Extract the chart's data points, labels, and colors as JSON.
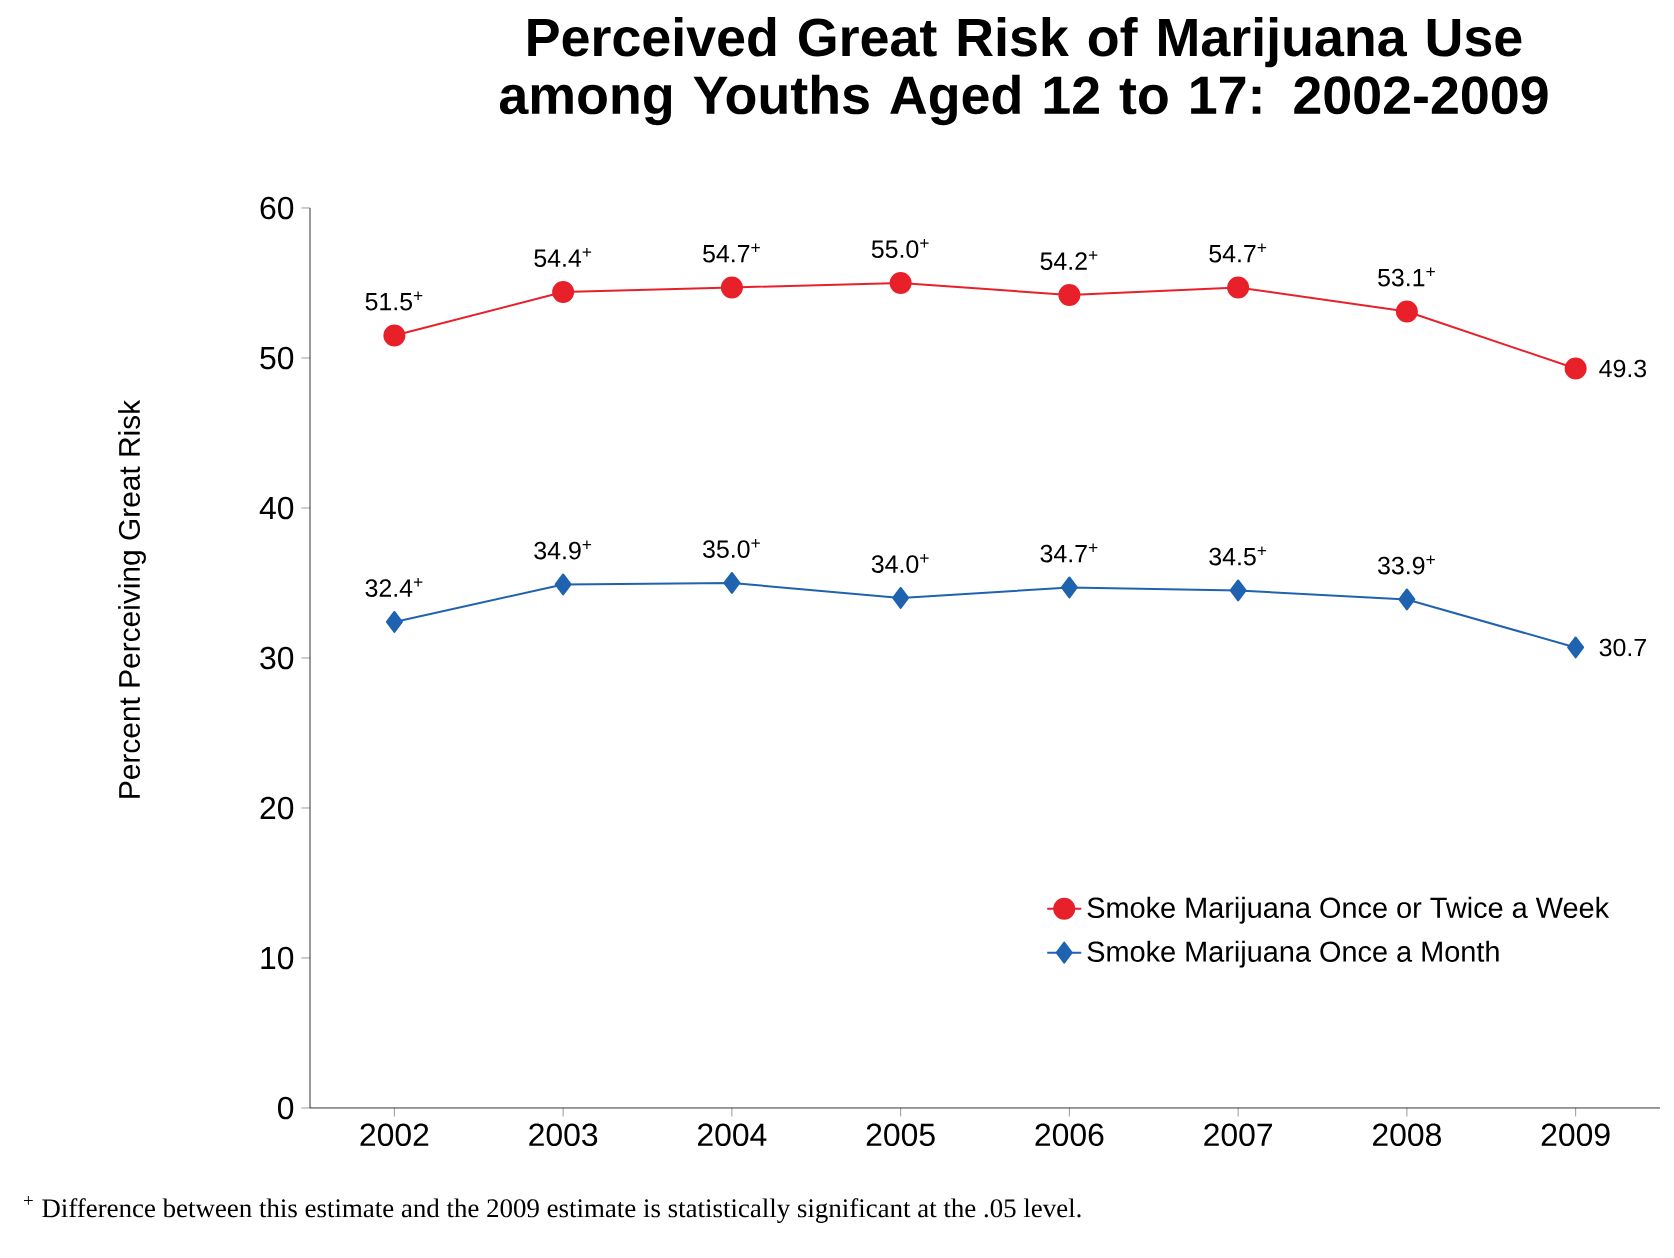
{
  "chart_data": {
    "type": "line",
    "title": "Perceived Great Risk of Marijuana Use among Youths Aged 12 to 17: 2002-2009",
    "ylabel": "Percent Perceiving Great Risk",
    "categories": [
      "2002",
      "2003",
      "2004",
      "2005",
      "2006",
      "2007",
      "2008",
      "2009"
    ],
    "series": [
      {
        "name": "Smoke Marijuana Once or Twice a Week",
        "color": "#e8202a",
        "marker": "circle",
        "values": [
          51.5,
          54.4,
          54.7,
          55.0,
          54.2,
          54.7,
          53.1,
          49.3
        ],
        "value_labels": [
          "51.5$^{+}$",
          "54.4$^{+}$",
          "54.7$^{+}$",
          "55.0$^{+}$",
          "54.2$^{+}$",
          "54.7$^{+}$",
          "53.1$^{+}$",
          "49.3"
        ]
      },
      {
        "name": "Smoke Marijuana Once a Month",
        "color": "#1f63b0",
        "marker": "diamond",
        "values": [
          32.4,
          34.9,
          35.0,
          34.0,
          34.7,
          34.5,
          33.9,
          30.7
        ],
        "value_labels": [
          "32.4$^{+}$",
          "34.9$^{+}$",
          "35.0$^{+}$",
          "34.0$^{+}$",
          "34.7$^{+}$",
          "34.5$^{+}$",
          "33.9$^{+}$",
          "30.7"
        ]
      }
    ],
    "ylim": [
      0,
      60
    ],
    "yticks": [
      0,
      10,
      20,
      30,
      40,
      50,
      60
    ],
    "legend": "bottom right",
    "annotations": [
      "$^{+}$ Difference between this estimate and the 2009 estimate is statistically significant at the .05 level."
    ]
  }
}
